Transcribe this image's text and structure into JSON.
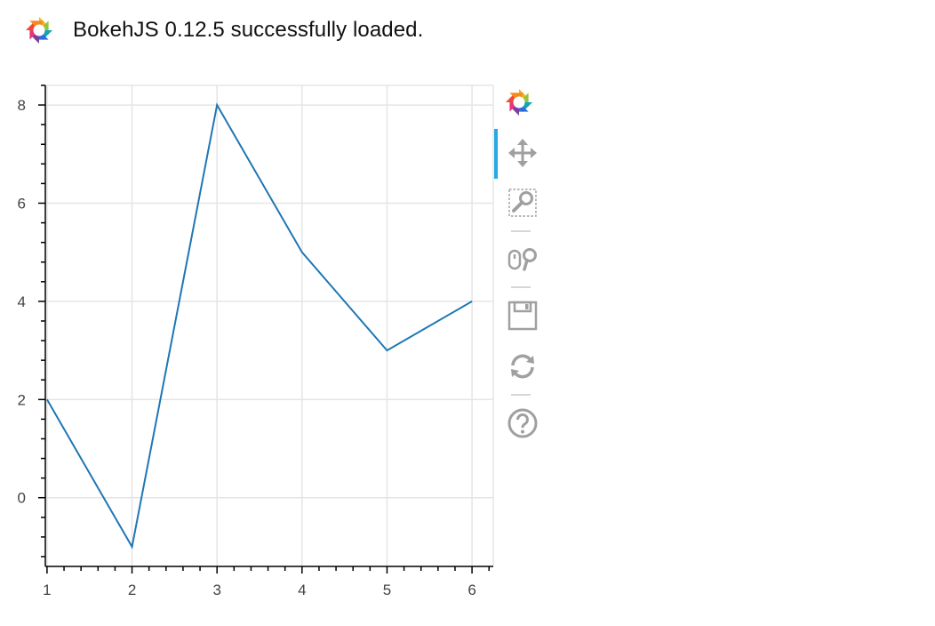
{
  "banner": {
    "message": "BokehJS 0.12.5 successfully loaded.",
    "logo_icon": "bokeh-logo-icon"
  },
  "toolbar": {
    "logo_icon": "bokeh-logo-icon",
    "tools": [
      {
        "name": "pan-tool",
        "icon": "pan-icon",
        "active": true
      },
      {
        "name": "box-zoom-tool",
        "icon": "box-zoom-icon",
        "active": false
      },
      {
        "name": "wheel-zoom-tool",
        "icon": "wheel-zoom-icon",
        "active": false
      },
      {
        "name": "save-tool",
        "icon": "save-icon",
        "active": false
      },
      {
        "name": "reset-tool",
        "icon": "reset-icon",
        "active": false
      },
      {
        "name": "help-tool",
        "icon": "help-icon",
        "active": false
      }
    ],
    "active_color": "#26aae1",
    "icon_color": "#a0a0a0"
  },
  "chart_data": {
    "type": "line",
    "x": [
      1,
      2,
      3,
      4,
      5,
      6
    ],
    "series": [
      {
        "values": [
          2,
          -1,
          8,
          5,
          3,
          4
        ],
        "color": "#1f77b4"
      }
    ],
    "title": "",
    "xlabel": "",
    "ylabel": "",
    "xlim": [
      0.98,
      6.25
    ],
    "ylim": [
      -1.4,
      8.4
    ],
    "xticks": [
      1,
      2,
      3,
      4,
      5,
      6
    ],
    "yticks": [
      0,
      2,
      4,
      6,
      8
    ],
    "grid": true,
    "grid_color": "#e5e5e5",
    "legend": "none"
  }
}
